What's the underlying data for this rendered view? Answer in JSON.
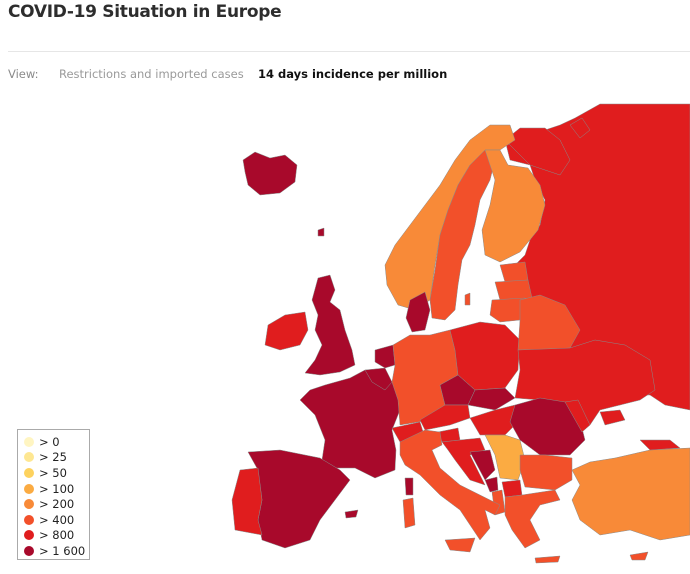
{
  "header": {
    "title": "COVID-19 Situation in Europe"
  },
  "view": {
    "label": "View:",
    "tabs": [
      {
        "label": "Restrictions and imported cases",
        "active": false
      },
      {
        "label": "14 days incidence per million",
        "active": true
      }
    ]
  },
  "legend": {
    "items": [
      {
        "label": "> 0",
        "color": "#fff5c2"
      },
      {
        "label": "> 25",
        "color": "#fee792"
      },
      {
        "label": "> 50",
        "color": "#fdd25e"
      },
      {
        "label": "> 100",
        "color": "#fbab42"
      },
      {
        "label": "> 200",
        "color": "#f88a38"
      },
      {
        "label": "> 400",
        "color": "#f2502a"
      },
      {
        "label": "> 800",
        "color": "#e01d1e"
      },
      {
        "label": "> 1 600",
        "color": "#a8092b"
      }
    ]
  }
}
